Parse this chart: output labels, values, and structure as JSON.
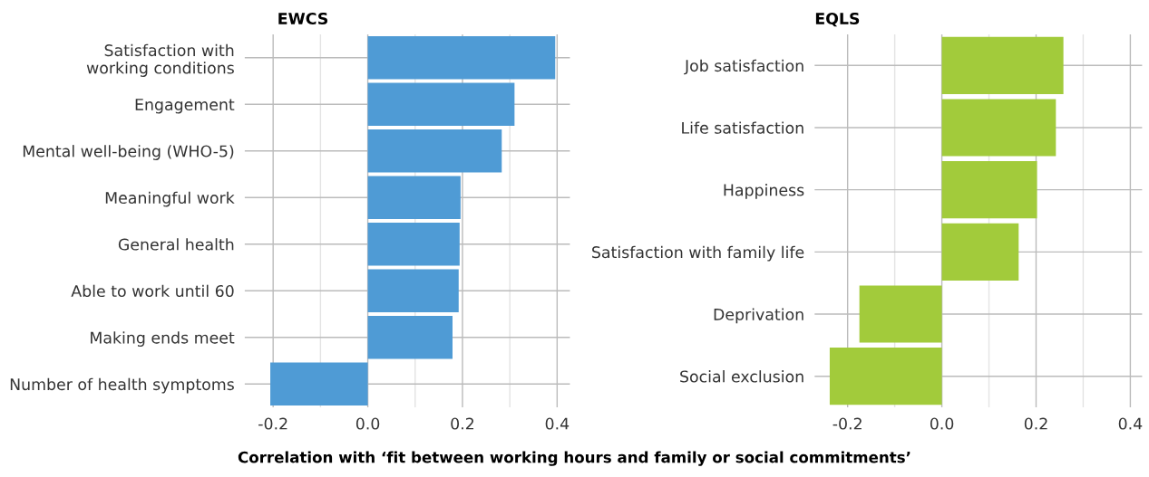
{
  "chart_data": [
    {
      "type": "bar",
      "orientation": "horizontal",
      "title": "EWCS",
      "xlabel": "Correlation with ‘fit between working hours and family or social commitments’",
      "categories": [
        "Satisfaction with\nworking conditions",
        "Engagement",
        "Mental well-being (WHO-5)",
        "Meaningful work",
        "General health",
        "Able to work until 60",
        "Making ends meet",
        "Number of health symptoms"
      ],
      "values": [
        0.396,
        0.31,
        0.283,
        0.196,
        0.194,
        0.192,
        0.179,
        -0.206
      ],
      "color": "#4f9bd5",
      "xlim": [
        -0.26,
        0.427
      ],
      "xticks": [
        -0.2,
        {
          "value": -0.1,
          "label": null
        },
        {
          "value": 0,
          "label": "0.0"
        },
        {
          "value": 0.1,
          "label": null
        },
        0.2,
        {
          "value": 0.3,
          "label": null
        },
        0.4
      ],
      "grid": true
    },
    {
      "type": "bar",
      "orientation": "horizontal",
      "title": "EQLS",
      "categories": [
        "Job satisfaction",
        "Life satisfaction",
        "Happiness",
        "Satisfaction with family life",
        "Deprivation",
        "Social exclusion"
      ],
      "values": [
        0.258,
        0.242,
        0.202,
        0.163,
        -0.175,
        -0.238
      ],
      "color": "#a2cb3b",
      "xlim": [
        -0.27,
        0.425
      ],
      "xticks": [
        -0.2,
        {
          "value": -0.1,
          "label": null
        },
        {
          "value": 0,
          "label": "0.0"
        },
        {
          "value": 0.1,
          "label": null
        },
        0.2,
        {
          "value": 0.3,
          "label": null
        },
        0.4
      ],
      "grid": true
    }
  ]
}
